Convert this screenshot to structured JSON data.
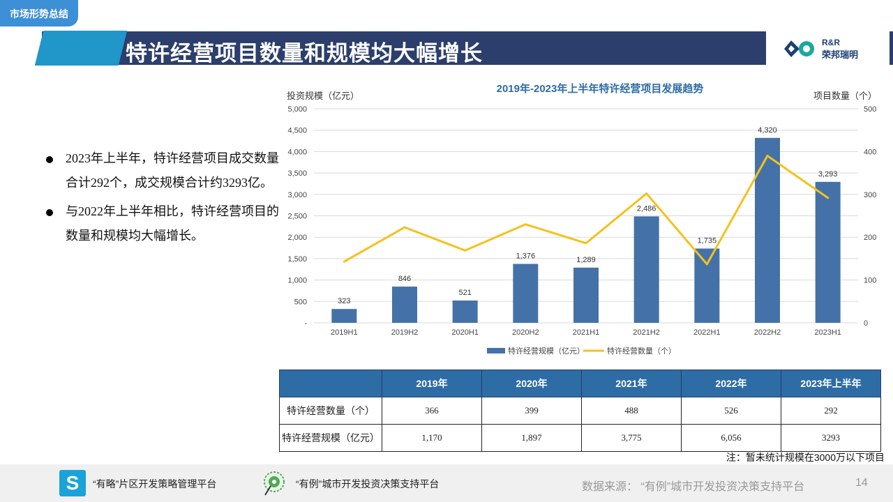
{
  "header": {
    "section_tag": "市场形势总结",
    "title": "特许经营项目数量和规模均大幅增长",
    "logo_en": "R&R",
    "logo_cn": "荣邦瑞明"
  },
  "bullets": [
    "2023年上半年，特许经营项目成交数量合计292个，成交规模合计约3293亿。",
    "与2022年上半年相比，特许经营项目的数量和规模均大幅增长。"
  ],
  "chart_data": {
    "type": "bar",
    "title": "2019年-2023年上半年特许经营项目发展趋势",
    "ylabel_left": "投资规模（亿元）",
    "ylabel_right": "项目数量（个）",
    "categories": [
      "2019H1",
      "2019H2",
      "2020H1",
      "2020H2",
      "2021H1",
      "2021H2",
      "2022H1",
      "2022H2",
      "2023H1"
    ],
    "series": [
      {
        "name": "特许经营规模（亿元）",
        "type": "bar",
        "axis": "left",
        "color": "#4472a8",
        "values": [
          323,
          846,
          521,
          1376,
          1289,
          2486,
          1735,
          4320,
          3293
        ],
        "labels": [
          "323",
          "846",
          "521",
          "1,376",
          "1,289",
          "2,486",
          "1,735",
          "4,320",
          "3,293"
        ]
      },
      {
        "name": "特许经营数量（个）",
        "type": "line",
        "axis": "right",
        "color": "#f5c11b",
        "values": [
          143,
          223,
          169,
          230,
          186,
          302,
          137,
          390,
          292
        ]
      }
    ],
    "ylim_left": [
      0,
      5000
    ],
    "yticks_left": [
      "-",
      "500",
      "1,000",
      "1,500",
      "2,000",
      "2,500",
      "3,000",
      "3,500",
      "4,000",
      "4,500",
      "5,000"
    ],
    "ylim_right": [
      0,
      500
    ],
    "yticks_right": [
      "0",
      "100",
      "200",
      "300",
      "400",
      "500"
    ],
    "grid": true,
    "legend": "bottom"
  },
  "table": {
    "headers": [
      "",
      "2019年",
      "2020年",
      "2021年",
      "2022年",
      "2023年上半年"
    ],
    "rows": [
      {
        "label": "特许经营数量（个）",
        "values": [
          "366",
          "399",
          "488",
          "526",
          "292"
        ]
      },
      {
        "label": "特许经营规模（亿元）",
        "values": [
          "1,170",
          "1,897",
          "3,775",
          "6,056",
          "3293"
        ]
      }
    ]
  },
  "note": "注：暂未统计规模在3000万以下项目",
  "footer": {
    "platform1": "“有略”片区开发策略管理平台",
    "platform2": "“有例”城市开发投资决策支持平台",
    "source": "数据来源：  “有例”城市开发投资决策支持平台",
    "page": "14"
  },
  "colors": {
    "title_bar": "#2c3e6b",
    "accent": "#2196c9",
    "bar": "#4472a8",
    "line": "#f5c11b",
    "table_head": "#2e6ca5"
  }
}
